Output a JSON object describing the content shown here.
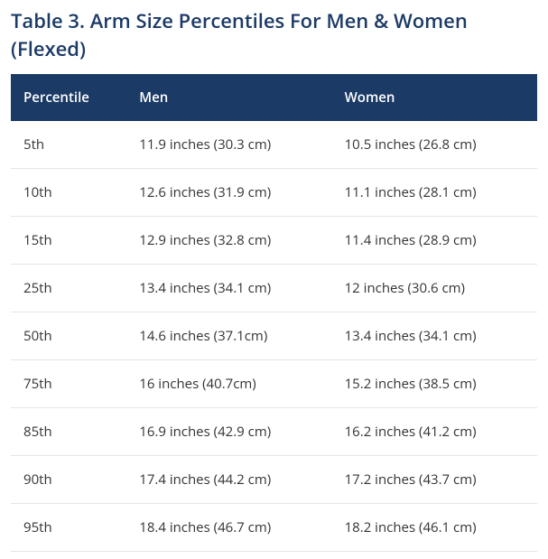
{
  "title": "Table 3. Arm Size Percentiles For Men & Women (Flexed)",
  "title_color": "#1b3a66",
  "table": {
    "header_bg": "#1b3a66",
    "header_text_color": "#ffffff",
    "row_border_color": "#e5e5e5",
    "body_text_color": "#333333",
    "columns": [
      "Percentile",
      "Men",
      "Women"
    ],
    "rows": [
      [
        "5th",
        "11.9 inches (30.3 cm)",
        "10.5 inches (26.8 cm)"
      ],
      [
        "10th",
        "12.6 inches (31.9 cm)",
        "11.1 inches (28.1 cm)"
      ],
      [
        "15th",
        "12.9 inches (32.8 cm)",
        "11.4 inches (28.9 cm)"
      ],
      [
        "25th",
        "13.4 inches (34.1 cm)",
        "12 inches (30.6 cm)"
      ],
      [
        "50th",
        "14.6 inches (37.1cm)",
        "13.4 inches (34.1 cm)"
      ],
      [
        "75th",
        "16 inches (40.7cm)",
        "15.2 inches (38.5 cm)"
      ],
      [
        "85th",
        "16.9 inches (42.9 cm)",
        "16.2 inches (41.2 cm)"
      ],
      [
        "90th",
        "17.4 inches (44.2 cm)",
        "17.2 inches (43.7 cm)"
      ],
      [
        "95th",
        "18.4 inches (46.7 cm)",
        "18.2 inches (46.1 cm)"
      ]
    ]
  }
}
